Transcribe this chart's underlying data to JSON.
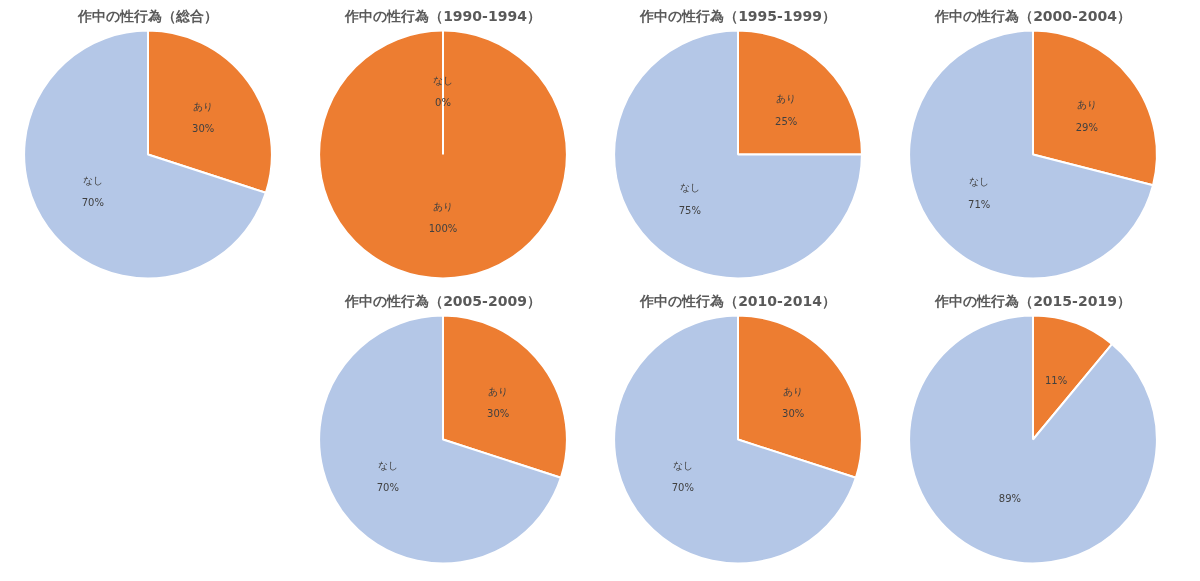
{
  "chart_data": [
    {
      "type": "pie",
      "title": "作中の性行為（総合）",
      "categories": [
        "あり",
        "なし"
      ],
      "values": [
        30,
        70
      ],
      "value_labels": [
        "30%",
        "70%"
      ],
      "colors": [
        "#ed7d31",
        "#b4c7e7"
      ]
    },
    {
      "type": "pie",
      "title": "作中の性行為（1990-1994）",
      "categories": [
        "あり",
        "なし"
      ],
      "values": [
        100,
        0
      ],
      "value_labels": [
        "100%",
        "0%"
      ],
      "colors": [
        "#ed7d31",
        "#b4c7e7"
      ]
    },
    {
      "type": "pie",
      "title": "作中の性行為（1995-1999）",
      "categories": [
        "あり",
        "なし"
      ],
      "values": [
        25,
        75
      ],
      "value_labels": [
        "25%",
        "75%"
      ],
      "colors": [
        "#ed7d31",
        "#b4c7e7"
      ]
    },
    {
      "type": "pie",
      "title": "作中の性行為（2000-2004）",
      "categories": [
        "あり",
        "なし"
      ],
      "values": [
        29,
        71
      ],
      "value_labels": [
        "29%",
        "71%"
      ],
      "colors": [
        "#ed7d31",
        "#b4c7e7"
      ]
    },
    {
      "type": "pie",
      "title": "作中の性行為（2005-2009）",
      "categories": [
        "あり",
        "なし"
      ],
      "values": [
        30,
        70
      ],
      "value_labels": [
        "30%",
        "70%"
      ],
      "colors": [
        "#ed7d31",
        "#b4c7e7"
      ]
    },
    {
      "type": "pie",
      "title": "作中の性行為（2010-2014）",
      "categories": [
        "あり",
        "なし"
      ],
      "values": [
        30,
        70
      ],
      "value_labels": [
        "30%",
        "70%"
      ],
      "colors": [
        "#ed7d31",
        "#b4c7e7"
      ]
    },
    {
      "type": "pie",
      "title": "作中の性行為（2015-2019）",
      "categories": [
        null,
        null
      ],
      "values": [
        11,
        89
      ],
      "value_labels": [
        "11%",
        "89%"
      ],
      "colors": [
        "#ed7d31",
        "#b4c7e7"
      ]
    }
  ]
}
